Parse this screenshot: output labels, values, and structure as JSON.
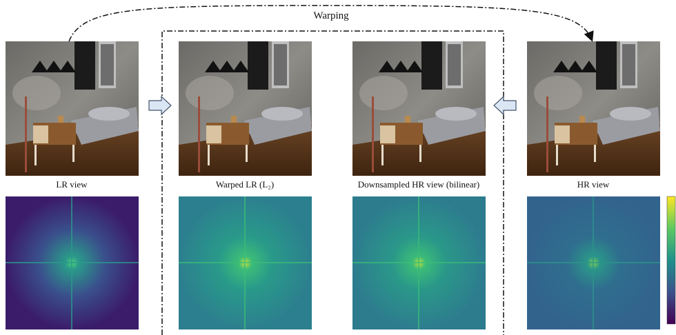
{
  "figure": {
    "arrow_label": "Warping",
    "panels": [
      {
        "caption": "LR view"
      },
      {
        "caption": "Warped LR (L₂)"
      },
      {
        "caption": "Downsampled HR view (bilinear)"
      },
      {
        "caption": "HR view"
      }
    ]
  }
}
